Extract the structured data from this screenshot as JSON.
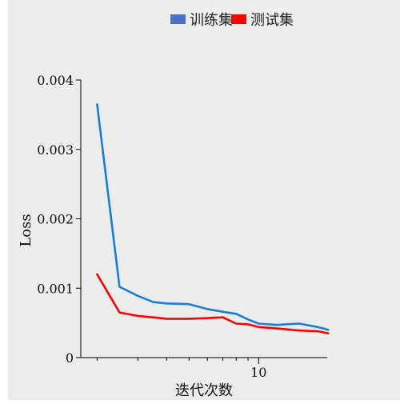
{
  "chart_data": {
    "type": "line",
    "title": "",
    "xlabel": "迭代次数",
    "ylabel": "Loss",
    "xscale": "log",
    "xlim": [
      1.7,
      19.8
    ],
    "ylim": [
      0,
      0.004
    ],
    "yticks": [
      {
        "value": 0,
        "label": "0"
      },
      {
        "value": 0.001,
        "label": "0.001"
      },
      {
        "value": 0.002,
        "label": "0.002"
      },
      {
        "value": 0.003,
        "label": "0.003"
      },
      {
        "value": 0.004,
        "label": "0.004"
      }
    ],
    "xticks_major": [
      {
        "value": 10,
        "label": "10"
      }
    ],
    "xticks_minor": [
      2,
      3,
      4,
      5,
      6,
      7,
      8,
      9,
      20
    ],
    "legend_position": "top-center",
    "background": "#ececec",
    "series": [
      {
        "name": "训练集",
        "legend_color": "#4e71c9",
        "color": "#1a7fd4",
        "x": [
          2,
          2.5,
          3,
          3.5,
          4,
          5,
          6,
          7,
          8,
          9,
          10,
          12,
          13,
          15,
          18,
          20
        ],
        "y": [
          0.00365,
          0.00102,
          0.00089,
          0.0008,
          0.00078,
          0.00077,
          0.0007,
          0.00066,
          0.00063,
          0.00055,
          0.00049,
          0.00047,
          0.00048,
          0.00049,
          0.00044,
          0.0004
        ]
      },
      {
        "name": "测试集",
        "legend_color": "#ff0000",
        "color": "#ff0000",
        "x": [
          2,
          2.5,
          3,
          3.5,
          4,
          5,
          6,
          7,
          8,
          9,
          10,
          12,
          13,
          15,
          18,
          20
        ],
        "y": [
          0.0012,
          0.00065,
          0.0006,
          0.00058,
          0.00056,
          0.00056,
          0.00057,
          0.00058,
          0.00049,
          0.00048,
          0.00044,
          0.00042,
          0.00041,
          0.00039,
          0.00038,
          0.00035
        ]
      }
    ]
  }
}
